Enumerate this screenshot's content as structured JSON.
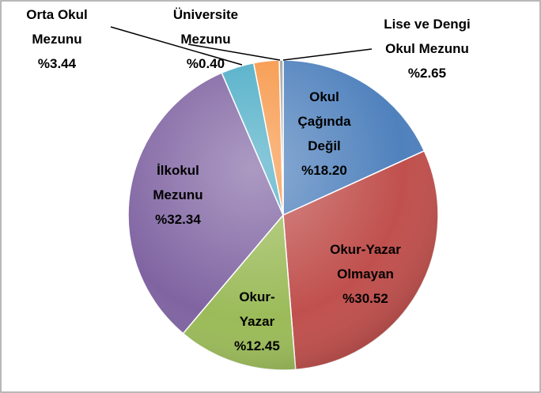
{
  "chart_data": {
    "type": "pie",
    "categories": [
      "Okul Çağında Değil",
      "Okur-Yazar Olmayan",
      "Okur-Yazar",
      "İlkokul Mezunu",
      "Orta Okul Mezunu",
      "Lise ve Dengi Okul Mezunu",
      "Üniversite Mezunu"
    ],
    "values": [
      18.2,
      30.52,
      12.45,
      32.34,
      3.44,
      2.65,
      0.4
    ],
    "value_labels": [
      "%18.20",
      "%30.52",
      "%12.45",
      "%32.34",
      "%3.44",
      "%2.65",
      "%0.40"
    ],
    "colors": [
      "#4f81bd",
      "#c0504d",
      "#9bbb59",
      "#8064a2",
      "#4bacc6",
      "#f79646",
      "#a5a5a5"
    ]
  }
}
